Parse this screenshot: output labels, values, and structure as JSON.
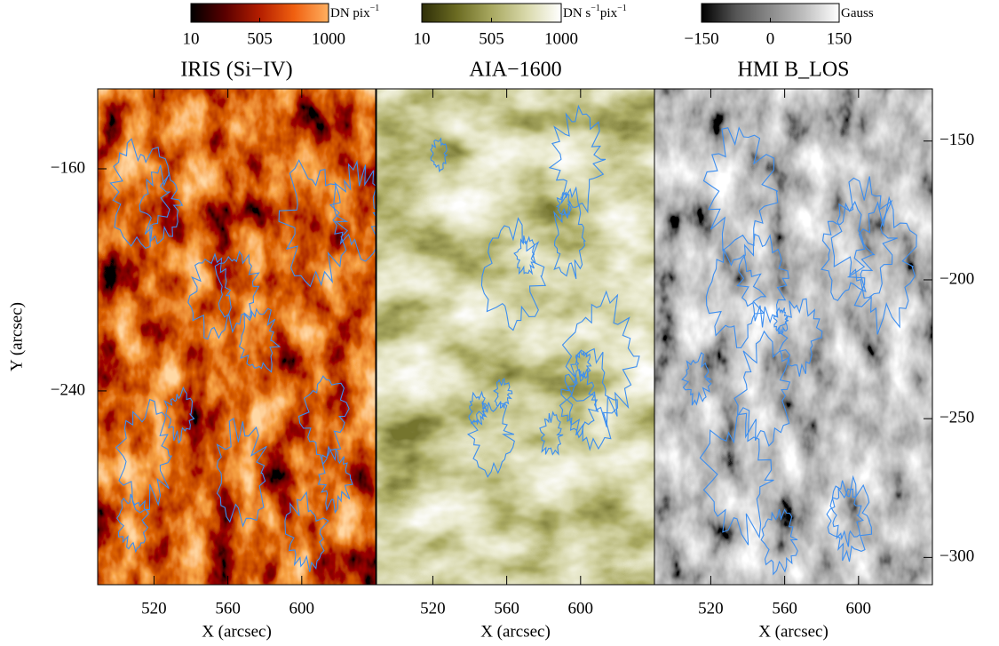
{
  "chart_data": [
    {
      "type": "image",
      "title": "IRIS (Si−IV)",
      "colormap": [
        "#000000",
        "#5a0000",
        "#b41e00",
        "#f06010",
        "#ffb060"
      ],
      "colorbar": {
        "unit": [
          {
            "text": "DN pix"
          },
          {
            "text": "−1",
            "sup": true
          }
        ],
        "clim": [
          10,
          1000
        ],
        "ticks": [
          10,
          505,
          1000
        ]
      },
      "xlabel": "X (arcsec)",
      "xlim": [
        489.5,
        640
      ],
      "xticks": [
        520,
        560,
        600
      ],
      "ylabel": "Y (arcsec)",
      "ylim": [
        -131.2,
        -309.8
      ],
      "yticks": [
        {
          "value": -160,
          "label": "−160"
        },
        {
          "value": -240,
          "label": "−240"
        }
      ]
    },
    {
      "type": "image",
      "title": "AIA−1600",
      "colormap": [
        "#2e2e08",
        "#6b6b22",
        "#a8a860",
        "#d8d8aa",
        "#ffffff"
      ],
      "colorbar": {
        "unit": [
          {
            "text": "DN s"
          },
          {
            "text": "−1",
            "sup": true
          },
          {
            "text": "pix"
          },
          {
            "text": "−1",
            "sup": true
          }
        ],
        "clim": [
          10,
          1000
        ],
        "ticks": [
          10,
          505,
          1000
        ]
      },
      "xlabel": "X (arcsec)",
      "xlim": [
        489.5,
        640
      ],
      "xticks": [
        520,
        560,
        600
      ],
      "ylim": [
        -131.2,
        -309.8
      ]
    },
    {
      "type": "image",
      "title": "HMI B_LOS",
      "colormap": [
        "#000000",
        "#555555",
        "#8a8a8a",
        "#c0c0c0",
        "#ffffff"
      ],
      "colorbar": {
        "unit": [
          {
            "text": "Gauss"
          }
        ],
        "clim": [
          -150,
          150
        ],
        "ticks": [
          {
            "value": -150,
            "label": "−150"
          },
          0,
          150
        ]
      },
      "xlabel": "X (arcsec)",
      "xlim": [
        489.5,
        640
      ],
      "xticks": [
        520,
        560,
        600
      ],
      "ylim": [
        -131.2,
        -309.8
      ],
      "y2ticks": [
        {
          "value": -150,
          "label": "−150"
        },
        {
          "value": -200,
          "label": "−200"
        },
        {
          "value": -250,
          "label": "−250"
        },
        {
          "value": -300,
          "label": "−300"
        }
      ]
    }
  ]
}
